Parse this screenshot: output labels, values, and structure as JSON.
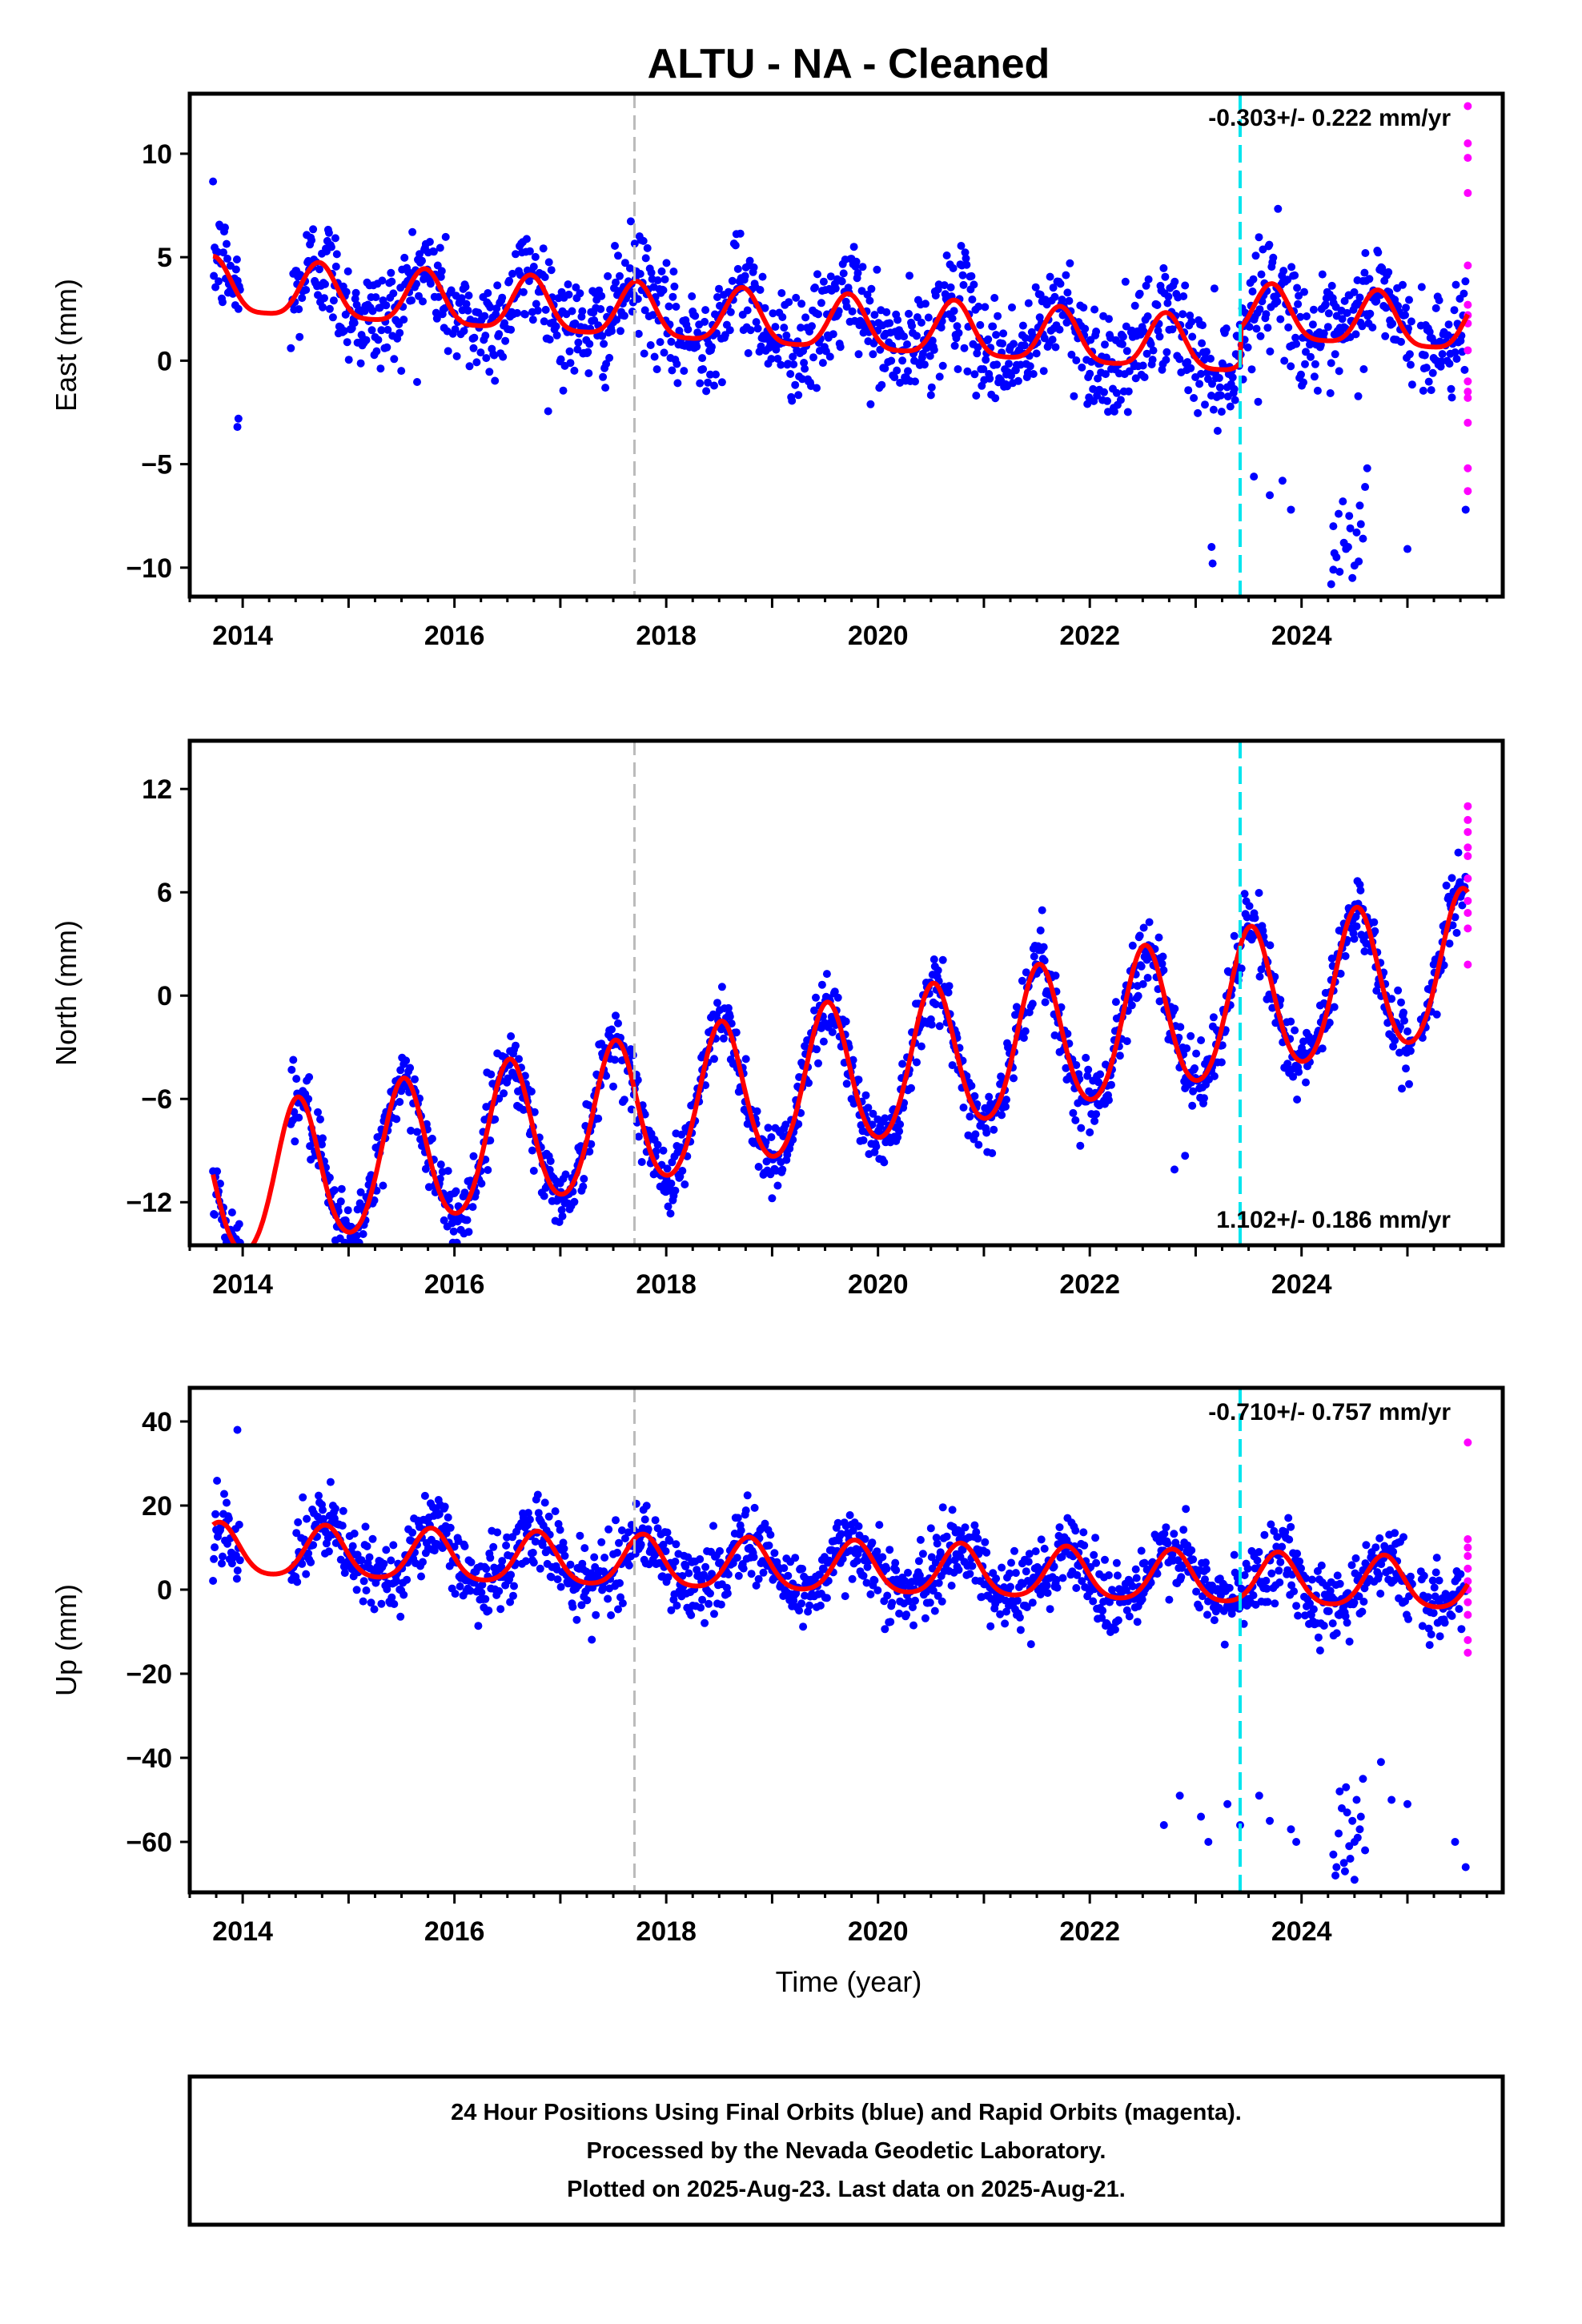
{
  "title": "ALTU  - NA - Cleaned",
  "xlabel": "Time (year)",
  "footer": {
    "line1": "24 Hour Positions Using Final Orbits (blue) and Rapid Orbits (magenta).",
    "line2": "Processed by the Nevada Geodetic Laboratory.",
    "line3": "Plotted on 2025-Aug-23. Last data on 2025-Aug-21."
  },
  "colors": {
    "final_orbits": "#0000ff",
    "rapid_orbits": "#ff00ff",
    "model_fit": "#ff0000",
    "equipment_change": "#00e5ee",
    "gray_marker": "#bbbbbb"
  },
  "chart_data": [
    {
      "type": "scatter",
      "component": "East",
      "ylabel": "East (mm)",
      "xlim": [
        2013.5,
        2025.9
      ],
      "ylim": [
        -11.4,
        12.9
      ],
      "yticks": [
        -10,
        -5,
        0,
        5,
        10
      ],
      "ytick_labels": [
        "−10",
        "−5",
        "0",
        "5",
        "10"
      ],
      "xticks": [
        2014,
        2016,
        2018,
        2020,
        2022,
        2024
      ],
      "xtick_labels": [
        "2014",
        "2016",
        "2018",
        "2020",
        "2022",
        "2024"
      ],
      "rate_label": "-0.303+/- 0.222 mm/yr",
      "rate_position": "top-right",
      "gray_dashed_line_x": 2017.7,
      "cyan_dashed_line_x": 2023.42,
      "model": {
        "offset": 1.7,
        "trend": -0.303,
        "annual_amplitude": 1.3,
        "annual_peak": 0.72,
        "semiannual_amplitude": 0.3,
        "scatter_sd": 1.3,
        "step_at": 2023.42,
        "step_size": 1.7
      },
      "anomalies": {
        "x": [
          2013.95,
          2013.96,
          2023.15,
          2023.16,
          2023.55,
          2023.7,
          2023.82,
          2023.9,
          2024.3,
          2024.33,
          2024.36,
          2024.4,
          2024.45,
          2024.5,
          2024.55,
          2024.6,
          2024.28,
          2024.42,
          2024.52,
          2024.35,
          2024.48,
          2024.58,
          2024.31,
          2024.39,
          2024.46,
          2024.54,
          2024.62,
          2024.3,
          2024.44,
          2024.56,
          2025.0,
          2025.55
        ],
        "y": [
          -3.2,
          -2.8,
          -9.0,
          -9.8,
          -5.6,
          -6.5,
          -5.8,
          -7.2,
          -8.0,
          -9.5,
          -10.2,
          -8.8,
          -7.5,
          -9.9,
          -7.0,
          -6.1,
          -10.8,
          -9.1,
          -8.3,
          -7.4,
          -10.5,
          -8.6,
          -9.3,
          -6.8,
          -8.1,
          -9.7,
          -5.2,
          -10.1,
          -9.0,
          -7.9,
          -9.1,
          -7.2
        ]
      },
      "rapid": {
        "x": [
          2025.57,
          2025.57,
          2025.57,
          2025.57,
          2025.57,
          2025.57,
          2025.57,
          2025.57,
          2025.57,
          2025.57,
          2025.57,
          2025.57,
          2025.57,
          2025.57,
          2025.57
        ],
        "y": [
          12.3,
          10.5,
          9.8,
          8.1,
          4.6,
          2.7,
          2.2,
          1.8,
          0.5,
          -1.0,
          -1.8,
          -3.0,
          -5.2,
          -6.3,
          -1.5
        ]
      }
    },
    {
      "type": "scatter",
      "component": "North",
      "ylabel": "North (mm)",
      "xlim": [
        2013.5,
        2025.9
      ],
      "ylim": [
        -14.5,
        14.8
      ],
      "yticks": [
        -12,
        -6,
        0,
        6,
        12
      ],
      "ytick_labels": [
        "−12",
        "−6",
        "0",
        "6",
        "12"
      ],
      "xticks": [
        2014,
        2016,
        2018,
        2020,
        2022,
        2024
      ],
      "xtick_labels": [
        "2014",
        "2016",
        "2018",
        "2020",
        "2022",
        "2024"
      ],
      "rate_label": "1.102+/- 0.186 mm/yr",
      "rate_position": "bottom-right",
      "gray_dashed_line_x": 2017.7,
      "cyan_dashed_line_x": 2023.42,
      "model": {
        "offset": -5.0,
        "trend": 1.102,
        "annual_amplitude": 4.2,
        "annual_peak": 0.52,
        "semiannual_amplitude": 0.4,
        "scatter_sd": 1.0,
        "step_at": 2023.42,
        "step_size": 0.0
      },
      "anomalies": {
        "x": [
          2022.8,
          2022.9
        ],
        "y": [
          -10.1,
          -9.3
        ]
      },
      "rapid": {
        "x": [
          2025.57,
          2025.57,
          2025.57,
          2025.57,
          2025.57,
          2025.57,
          2025.57,
          2025.57,
          2025.57,
          2025.57
        ],
        "y": [
          11.0,
          10.2,
          9.5,
          8.6,
          8.1,
          6.8,
          5.5,
          4.8,
          3.9,
          1.8
        ]
      }
    },
    {
      "type": "scatter",
      "component": "Up",
      "ylabel": "Up (mm)",
      "xlim": [
        2013.5,
        2025.9
      ],
      "ylim": [
        -72,
        48
      ],
      "yticks": [
        -60,
        -40,
        -20,
        0,
        20,
        40
      ],
      "ytick_labels": [
        "−60",
        "−40",
        "−20",
        "0",
        "20",
        "40"
      ],
      "xticks": [
        2014,
        2016,
        2018,
        2020,
        2022,
        2024
      ],
      "xtick_labels": [
        "2014",
        "2016",
        "2018",
        "2020",
        "2022",
        "2024"
      ],
      "rate_label": "-0.710+/- 0.757 mm/yr",
      "rate_position": "top-right",
      "gray_dashed_line_x": 2017.7,
      "cyan_dashed_line_x": 2023.42,
      "model": {
        "offset": 5.0,
        "trend": -0.71,
        "annual_amplitude": 6.0,
        "annual_peak": 0.78,
        "semiannual_amplitude": 1.0,
        "scatter_sd": 4.5,
        "step_at": 2023.42,
        "step_size": 0.0
      },
      "anomalies": {
        "x": [
          2013.95,
          2022.7,
          2022.85,
          2023.05,
          2023.12,
          2023.3,
          2023.42,
          2023.6,
          2023.7,
          2023.9,
          2023.95,
          2024.3,
          2024.32,
          2024.35,
          2024.38,
          2024.4,
          2024.42,
          2024.45,
          2024.48,
          2024.5,
          2024.52,
          2024.55,
          2024.58,
          2024.6,
          2024.33,
          2024.43,
          2024.53,
          2024.36,
          2024.46,
          2024.56,
          2024.41,
          2024.5,
          2024.75,
          2024.85,
          2025.0,
          2025.45,
          2025.55
        ],
        "y": [
          38,
          -56,
          -49,
          -54,
          -60,
          -51,
          -56,
          -49,
          -55,
          -57,
          -60,
          -63,
          -68,
          -58,
          -52,
          -65,
          -47,
          -61,
          -55,
          -69,
          -50,
          -57,
          -45,
          -62,
          -66,
          -53,
          -59,
          -48,
          -64,
          -54,
          -67,
          -60,
          -41,
          -50,
          -51,
          -60,
          -66
        ]
      },
      "rapid": {
        "x": [
          2025.57,
          2025.57,
          2025.57,
          2025.57,
          2025.57,
          2025.57,
          2025.57,
          2025.57,
          2025.57,
          2025.57,
          2025.57
        ],
        "y": [
          35,
          12,
          10,
          8,
          5,
          2,
          0,
          -3,
          -6,
          -12,
          -15
        ]
      }
    }
  ]
}
